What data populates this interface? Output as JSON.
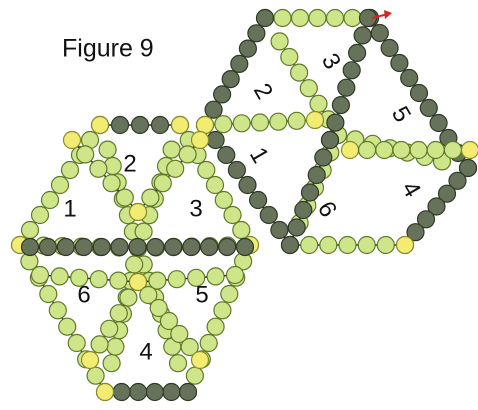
{
  "figure": {
    "title": "Figure 9"
  },
  "left_hexagon": {
    "labels": [
      "1",
      "2",
      "3",
      "4",
      "5",
      "6"
    ]
  },
  "right_hexagon": {
    "labels": [
      "1",
      "2",
      "3",
      "4",
      "5",
      "6"
    ]
  }
}
